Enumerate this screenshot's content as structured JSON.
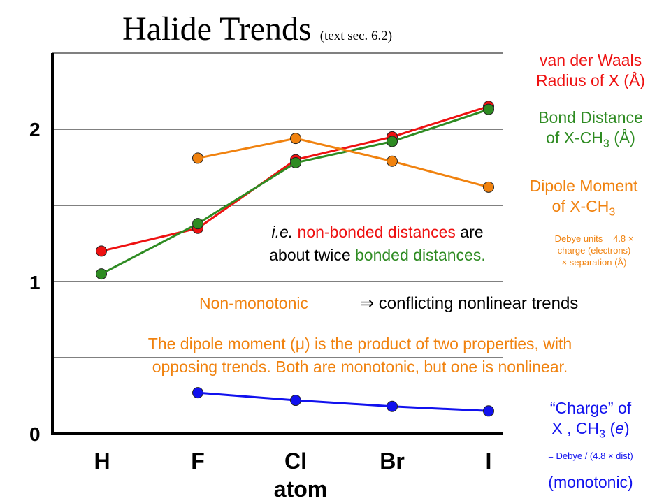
{
  "title": {
    "main": "Halide Trends",
    "sub": "(text sec. 6.2)"
  },
  "chart_data": {
    "type": "line",
    "categories": [
      "H",
      "F",
      "Cl",
      "Br",
      "I"
    ],
    "xlabel": "atom",
    "ylabel": "",
    "ylim": [
      0,
      2.5
    ],
    "yticks": [
      "0",
      "1",
      "2"
    ],
    "grid": true,
    "series": [
      {
        "name": "van der Waals Radius of X (Å)",
        "color": "#ee1111",
        "values": [
          1.2,
          1.35,
          1.8,
          1.95,
          2.15
        ]
      },
      {
        "name": "Bond Distance of X-CH3 (Å)",
        "color": "#2e8b22",
        "values": [
          1.05,
          1.38,
          1.78,
          1.92,
          2.13
        ]
      },
      {
        "name": "Dipole Moment of X-CH3",
        "color": "#f0820f",
        "values": [
          null,
          1.81,
          1.94,
          1.79,
          1.62
        ]
      },
      {
        "name": "“Charge” of X , CH3 (e)",
        "color": "#1111ee",
        "values": [
          null,
          0.27,
          0.22,
          0.18,
          0.15
        ]
      }
    ]
  },
  "legend": {
    "vdw_line1": "van der Waals",
    "vdw_line2": "Radius of X (Å)",
    "bond_line1": "Bond Distance",
    "bond_line2_pre": "of X-CH",
    "bond_line2_sub": "3",
    "bond_line2_post": " (Å)",
    "dipole_line1": "Dipole Moment",
    "dipole_line2_pre": "of X-CH",
    "dipole_line2_sub": "3",
    "debye_line1": "Debye units =  4.8 ×",
    "debye_line2": "charge (electrons)",
    "debye_line3": "× separation (Å)",
    "charge_line1": "“Charge” of",
    "charge_line2_pre": "X , CH",
    "charge_line2_sub": "3",
    "charge_line2_mid": " (",
    "charge_line2_e": "e",
    "charge_line2_post": ")",
    "charge_formula": "= Debye / (4.8 × dist)",
    "charge_monotonic": "(monotonic)"
  },
  "annotations": {
    "ie": "i.e.",
    "nonbonded": "non-bonded distances",
    "are": "are",
    "about_twice": "about twice",
    "bonded": "bonded distances.",
    "nonmonotonic": "Non-monotonic",
    "arrow": "⇒",
    "conflicting": "conflicting nonlinear trends",
    "dipole_sentence_1a": "The dipole moment (",
    "mu": "μ",
    "dipole_sentence_1b": ") is the product of two properties, with",
    "dipole_sentence_2": "opposing trends. Both are monotonic, but one is nonlinear."
  }
}
